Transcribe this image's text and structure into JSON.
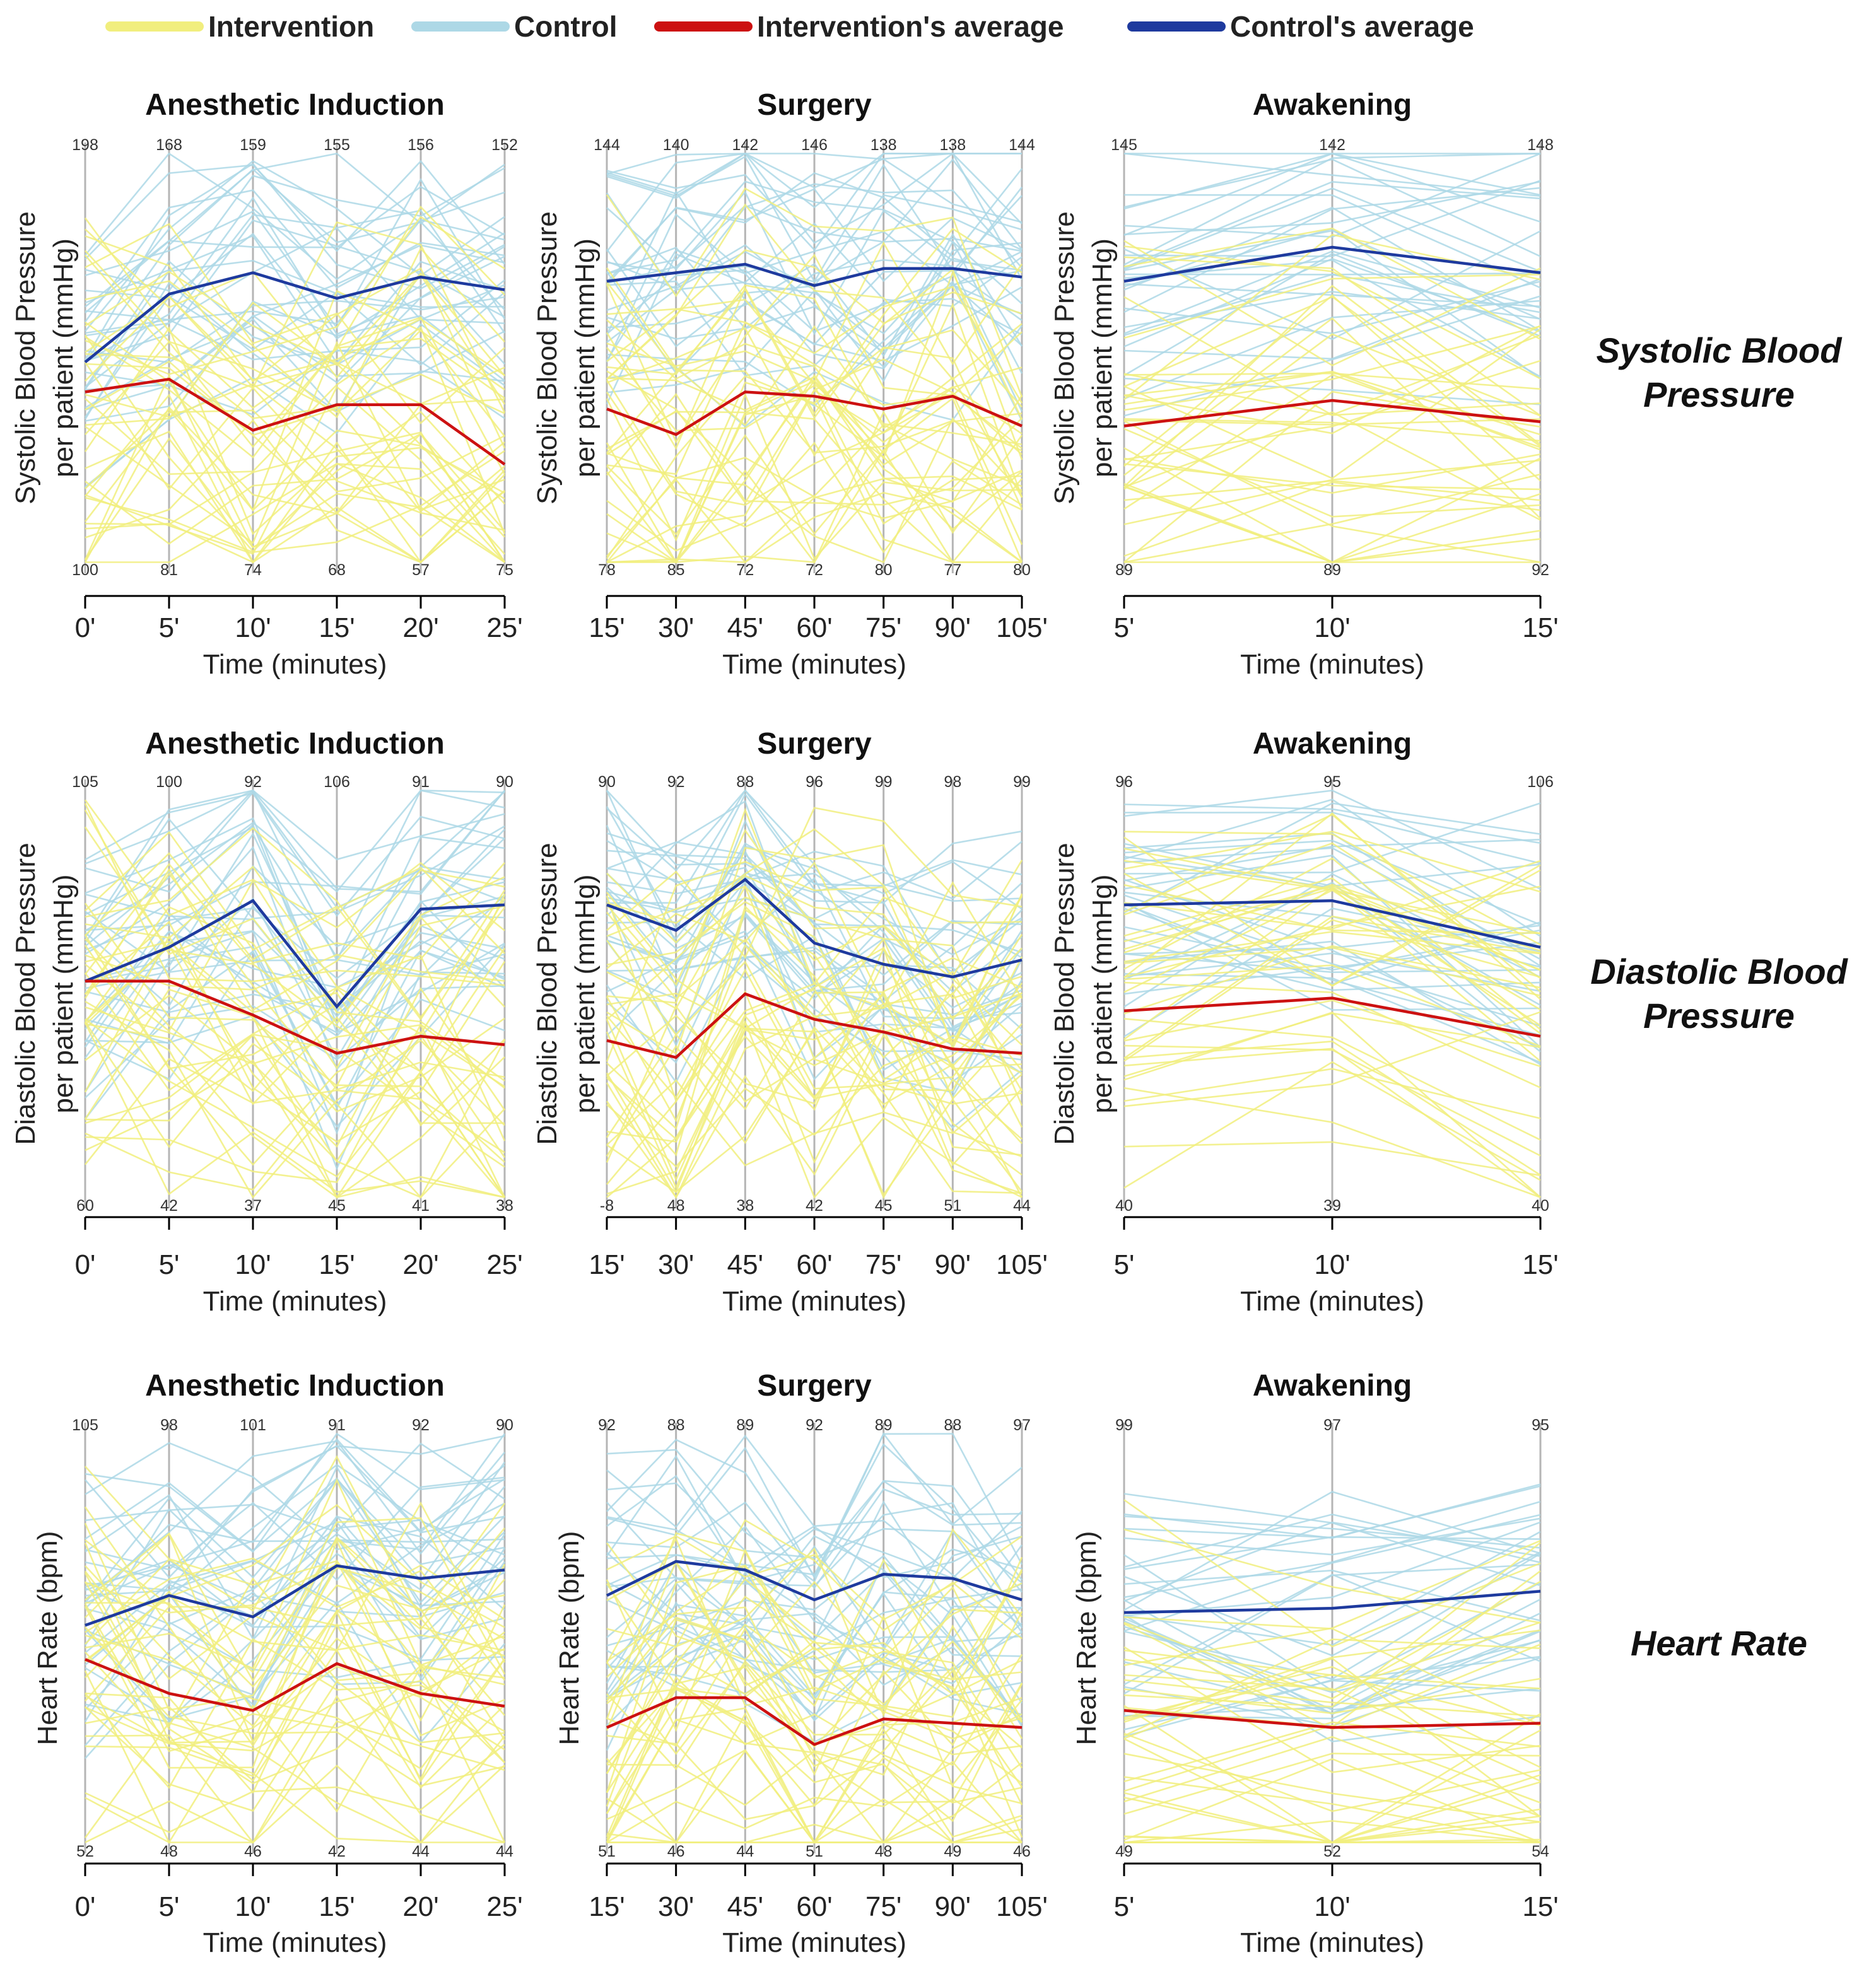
{
  "legend": {
    "items": [
      {
        "label": "Intervention",
        "color": "#f1ee7e"
      },
      {
        "label": "Control",
        "color": "#add8e6"
      },
      {
        "label": "Intervention's average",
        "color": "#cc1111"
      },
      {
        "label": "Control's average",
        "color": "#1e3a9e"
      }
    ]
  },
  "row_labels": [
    [
      "Systolic Blood",
      "Pressure"
    ],
    [
      "Diastolic Blood",
      "Pressure"
    ],
    [
      "Heart Rate"
    ]
  ],
  "chart_data": [
    {
      "type": "line",
      "row": 0,
      "title": "Anesthetic Induction",
      "xlabel": "Time (minutes)",
      "ylabel": [
        "Systolic Blood Pressure",
        "per patient (mmHg)"
      ],
      "x": [
        "0'",
        "5'",
        "10'",
        "15'",
        "20'",
        "25'"
      ],
      "axis_max": [
        198,
        168,
        159,
        155,
        156,
        152
      ],
      "axis_min": [
        100,
        81,
        74,
        68,
        57,
        75
      ],
      "series": [
        {
          "name": "Control's average",
          "fracs": [
            0.49,
            0.65,
            0.7,
            0.64,
            0.69,
            0.66
          ]
        },
        {
          "name": "Intervention's average",
          "fracs": [
            0.42,
            0.45,
            0.33,
            0.39,
            0.39,
            0.25
          ]
        }
      ]
    },
    {
      "type": "line",
      "row": 0,
      "title": "Surgery",
      "xlabel": "Time (minutes)",
      "ylabel": [
        "Systolic Blood Pressure",
        "per patient (mmHg)"
      ],
      "x": [
        "15'",
        "30'",
        "45'",
        "60'",
        "75'",
        "90'",
        "105'"
      ],
      "axis_max": [
        144,
        140,
        142,
        146,
        138,
        138,
        144
      ],
      "axis_min": [
        78,
        85,
        72,
        72,
        80,
        77,
        80
      ],
      "series": [
        {
          "name": "Control's average",
          "fracs": [
            0.68,
            0.7,
            0.72,
            0.67,
            0.71,
            0.71,
            0.69
          ]
        },
        {
          "name": "Intervention's average",
          "fracs": [
            0.38,
            0.32,
            0.42,
            0.41,
            0.38,
            0.41,
            0.34
          ]
        }
      ]
    },
    {
      "type": "line",
      "row": 0,
      "title": "Awakening",
      "xlabel": "Time (minutes)",
      "ylabel": [
        "Systolic Blood Pressure",
        "per patient (mmHg)"
      ],
      "x": [
        "5'",
        "10'",
        "15'"
      ],
      "axis_max": [
        145,
        142,
        148
      ],
      "axis_min": [
        89,
        89,
        92
      ],
      "series": [
        {
          "name": "Control's average",
          "fracs": [
            0.68,
            0.76,
            0.7
          ]
        },
        {
          "name": "Intervention's average",
          "fracs": [
            0.34,
            0.4,
            0.35
          ]
        }
      ]
    },
    {
      "type": "line",
      "row": 1,
      "title": "Anesthetic Induction",
      "xlabel": "Time (minutes)",
      "ylabel": [
        "Diastolic Blood Pressure",
        "per patient (mmHg)"
      ],
      "x": [
        "0'",
        "5'",
        "10'",
        "15'",
        "20'",
        "25'"
      ],
      "axis_max": [
        105,
        100,
        92,
        106,
        91,
        90
      ],
      "axis_min": [
        60,
        42,
        37,
        45,
        41,
        38
      ],
      "series": [
        {
          "name": "Control's average",
          "fracs": [
            0.53,
            0.61,
            0.72,
            0.47,
            0.7,
            0.71
          ]
        },
        {
          "name": "Intervention's average",
          "fracs": [
            0.53,
            0.53,
            0.45,
            0.36,
            0.4,
            0.38
          ]
        }
      ]
    },
    {
      "type": "line",
      "row": 1,
      "title": "Surgery",
      "xlabel": "Time (minutes)",
      "ylabel": [
        "Diastolic Blood Pressure",
        "per patient (mmHg)"
      ],
      "x": [
        "15'",
        "30'",
        "45'",
        "60'",
        "75'",
        "90'",
        "105'"
      ],
      "axis_max": [
        90,
        92,
        88,
        96,
        99,
        98,
        99
      ],
      "axis_min": [
        "-8",
        48,
        38,
        42,
        45,
        51,
        44
      ],
      "series": [
        {
          "name": "Control's average",
          "fracs": [
            0.71,
            0.65,
            0.77,
            0.62,
            0.57,
            0.54,
            0.58
          ]
        },
        {
          "name": "Intervention's average",
          "fracs": [
            0.39,
            0.35,
            0.5,
            0.44,
            0.41,
            0.37,
            0.36
          ]
        }
      ]
    },
    {
      "type": "line",
      "row": 1,
      "title": "Awakening",
      "xlabel": "Time (minutes)",
      "ylabel": [
        "Diastolic Blood Pressure",
        "per patient (mmHg)"
      ],
      "x": [
        "5'",
        "10'",
        "15'"
      ],
      "axis_max": [
        96,
        95,
        106
      ],
      "axis_min": [
        40,
        39,
        40
      ],
      "series": [
        {
          "name": "Control's average",
          "fracs": [
            0.71,
            0.72,
            0.61
          ]
        },
        {
          "name": "Intervention's average",
          "fracs": [
            0.46,
            0.49,
            0.4
          ]
        }
      ]
    },
    {
      "type": "line",
      "row": 2,
      "title": "Anesthetic Induction",
      "xlabel": "Time (minutes)",
      "ylabel": [
        "Heart Rate (bpm)"
      ],
      "x": [
        "0'",
        "5'",
        "10'",
        "15'",
        "20'",
        "25'"
      ],
      "axis_max": [
        105,
        98,
        101,
        91,
        92,
        90
      ],
      "axis_min": [
        52,
        48,
        46,
        42,
        44,
        44
      ],
      "series": [
        {
          "name": "Control's average",
          "fracs": [
            0.53,
            0.6,
            0.55,
            0.67,
            0.64,
            0.66
          ]
        },
        {
          "name": "Intervention's average",
          "fracs": [
            0.45,
            0.37,
            0.33,
            0.44,
            0.37,
            0.34
          ]
        }
      ]
    },
    {
      "type": "line",
      "row": 2,
      "title": "Surgery",
      "xlabel": "Time (minutes)",
      "ylabel": [
        "Heart Rate (bpm)"
      ],
      "x": [
        "15'",
        "30'",
        "45'",
        "60'",
        "75'",
        "90'",
        "105'"
      ],
      "axis_max": [
        92,
        88,
        89,
        92,
        89,
        88,
        97
      ],
      "axis_min": [
        51,
        46,
        44,
        51,
        48,
        49,
        46
      ],
      "series": [
        {
          "name": "Control's average",
          "fracs": [
            0.6,
            0.68,
            0.66,
            0.59,
            0.65,
            0.64,
            0.59
          ]
        },
        {
          "name": "Intervention's average",
          "fracs": [
            0.29,
            0.36,
            0.36,
            0.25,
            0.31,
            0.3,
            0.29
          ]
        }
      ]
    },
    {
      "type": "line",
      "row": 2,
      "title": "Awakening",
      "xlabel": "Time (minutes)",
      "ylabel": [
        "Heart Rate (bpm)"
      ],
      "x": [
        "5'",
        "10'",
        "15'"
      ],
      "axis_max": [
        99,
        97,
        95
      ],
      "axis_min": [
        49,
        52,
        54
      ],
      "series": [
        {
          "name": "Control's average",
          "fracs": [
            0.56,
            0.57,
            0.61
          ]
        },
        {
          "name": "Intervention's average",
          "fracs": [
            0.33,
            0.29,
            0.3
          ]
        }
      ]
    }
  ]
}
